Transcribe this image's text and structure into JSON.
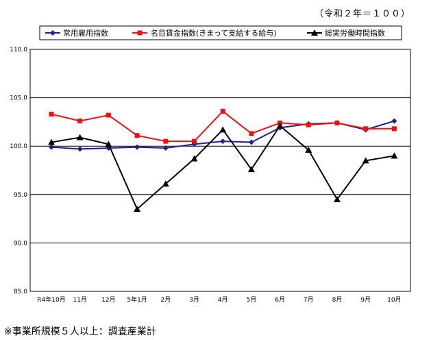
{
  "unit_note": "（令和２年＝１００）",
  "footnote": "※事業所規模５人以上：調査産業計",
  "colors": {
    "series1": "#1f1f8f",
    "series2": "#ee1111",
    "series3": "#000000"
  },
  "chart_data": {
    "type": "line",
    "title": "",
    "xlabel": "",
    "ylabel": "",
    "categories": [
      "R4年10月",
      "11月",
      "12月",
      "5年1月",
      "2月",
      "3月",
      "4月",
      "5月",
      "6月",
      "7月",
      "8月",
      "9月",
      "10月"
    ],
    "ylim": [
      85.0,
      110.0
    ],
    "yticks": [
      "110.0",
      "105.0",
      "100.0",
      "95.0",
      "90.0",
      "85.0"
    ],
    "grid": "horizontal",
    "legend_position": "top",
    "series": [
      {
        "name": "常用雇用指数",
        "marker": "diamond",
        "values": [
          99.9,
          99.7,
          99.8,
          99.9,
          99.8,
          100.2,
          100.5,
          100.4,
          101.9,
          102.3,
          102.4,
          101.7,
          102.6
        ]
      },
      {
        "name": "名目賃金指数(きまって支給する給与)",
        "marker": "square",
        "values": [
          103.3,
          102.6,
          103.2,
          101.1,
          100.5,
          100.5,
          103.6,
          101.3,
          102.4,
          102.2,
          102.4,
          101.8,
          101.8
        ]
      },
      {
        "name": "総実労働時間指数",
        "marker": "triangle",
        "values": [
          100.4,
          100.9,
          100.2,
          93.5,
          96.1,
          98.7,
          101.7,
          97.6,
          102.1,
          99.6,
          94.5,
          98.5,
          99.0
        ]
      }
    ]
  }
}
